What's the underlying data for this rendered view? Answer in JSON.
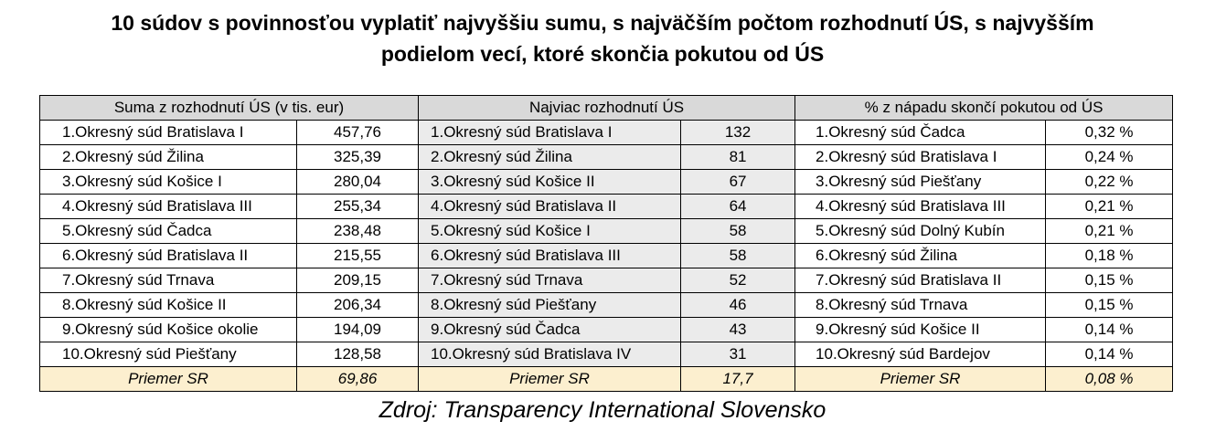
{
  "title_line1": "10 súdov s povinnosťou vyplatiť najvyššiu sumu, s najväčším počtom rozhodnutí ÚS, s najvyšším",
  "title_line2": "podielom vecí, ktoré skončia pokutou od ÚS",
  "headers": {
    "col1": "Suma z rozhodnutí ÚS (v tis. eur)",
    "col2": "Najviac rozhodnutí ÚS",
    "col3": "% z nápadu skončí pokutou od ÚS"
  },
  "rows": [
    {
      "c1_name": "1.Okresný súd Bratislava I",
      "c1_val": "457,76",
      "c2_name": "1.Okresný súd Bratislava I",
      "c2_val": "132",
      "c3_name": "1.Okresný súd Čadca",
      "c3_val": "0,32 %"
    },
    {
      "c1_name": "2.Okresný súd Žilina",
      "c1_val": "325,39",
      "c2_name": "2.Okresný súd Žilina",
      "c2_val": "81",
      "c3_name": "2.Okresný súd Bratislava I",
      "c3_val": "0,24 %"
    },
    {
      "c1_name": "3.Okresný súd Košice I",
      "c1_val": "280,04",
      "c2_name": "3.Okresný súd Košice II",
      "c2_val": "67",
      "c3_name": "3.Okresný súd Piešťany",
      "c3_val": "0,22 %"
    },
    {
      "c1_name": "4.Okresný súd Bratislava III",
      "c1_val": "255,34",
      "c2_name": "4.Okresný súd Bratislava II",
      "c2_val": "64",
      "c3_name": "4.Okresný súd Bratislava III",
      "c3_val": "0,21 %"
    },
    {
      "c1_name": "5.Okresný súd Čadca",
      "c1_val": "238,48",
      "c2_name": "5.Okresný súd Košice I",
      "c2_val": "58",
      "c3_name": "5.Okresný súd Dolný Kubín",
      "c3_val": "0,21 %"
    },
    {
      "c1_name": "6.Okresný súd Bratislava II",
      "c1_val": "215,55",
      "c2_name": "6.Okresný súd Bratislava III",
      "c2_val": "58",
      "c3_name": "6.Okresný súd Žilina",
      "c3_val": "0,18 %"
    },
    {
      "c1_name": "7.Okresný súd Trnava",
      "c1_val": "209,15",
      "c2_name": "7.Okresný súd Trnava",
      "c2_val": "52",
      "c3_name": "7.Okresný súd Bratislava II",
      "c3_val": "0,15 %"
    },
    {
      "c1_name": "8.Okresný súd Košice II",
      "c1_val": "206,34",
      "c2_name": "8.Okresný súd Piešťany",
      "c2_val": "46",
      "c3_name": "8.Okresný súd Trnava",
      "c3_val": "0,15 %"
    },
    {
      "c1_name": "9.Okresný súd Košice okolie",
      "c1_val": "194,09",
      "c2_name": "9.Okresný súd Čadca",
      "c2_val": "43",
      "c3_name": "9.Okresný súd Košice II",
      "c3_val": "0,14 %"
    },
    {
      "c1_name": "10.Okresný súd Piešťany",
      "c1_val": "128,58",
      "c2_name": "10.Okresný súd Bratislava IV",
      "c2_val": "31",
      "c3_name": "10.Okresný súd Bardejov",
      "c3_val": "0,14 %"
    }
  ],
  "average": {
    "label1": "Priemer SR",
    "val1": "69,86",
    "label2": "Priemer SR",
    "val2": "17,7",
    "label3": "Priemer SR",
    "val3": "0,08 %"
  },
  "source": "Zdroj: Transparency International Slovensko",
  "colors": {
    "header_bg": "#d9d9d9",
    "middle_column_bg": "#ebebeb",
    "average_row_bg": "#fcefcf"
  }
}
